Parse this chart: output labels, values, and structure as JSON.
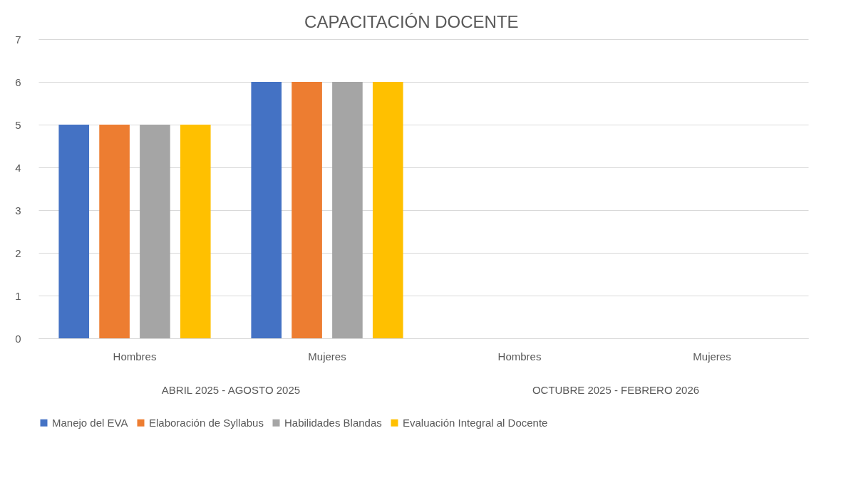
{
  "chart_data": {
    "type": "bar",
    "title": "CAPACITACIÓN DOCENTE",
    "categories": [
      "Hombres",
      "Mujeres",
      "Hombres",
      "Mujeres"
    ],
    "series": [
      {
        "name": "Manejo del EVA",
        "color": "#4472c4",
        "values": [
          5,
          6,
          null,
          null
        ]
      },
      {
        "name": "Elaboración de Syllabus",
        "color": "#ed7d31",
        "values": [
          5,
          6,
          null,
          null
        ]
      },
      {
        "name": "Habilidades Blandas",
        "color": "#a5a5a5",
        "values": [
          5,
          6,
          null,
          null
        ]
      },
      {
        "name": "Evaluación Integral al Docente",
        "color": "#ffc000",
        "values": [
          5,
          6,
          null,
          null
        ]
      }
    ],
    "annotations": [
      "ABRIL 2025 - AGOSTO 2025",
      "OCTUBRE 2025 - FEBRERO 2026"
    ],
    "ylim": [
      0,
      7
    ],
    "yticks": [
      0,
      1,
      2,
      3,
      4,
      5,
      6,
      7
    ],
    "grid": "y",
    "legend": "bottom"
  }
}
